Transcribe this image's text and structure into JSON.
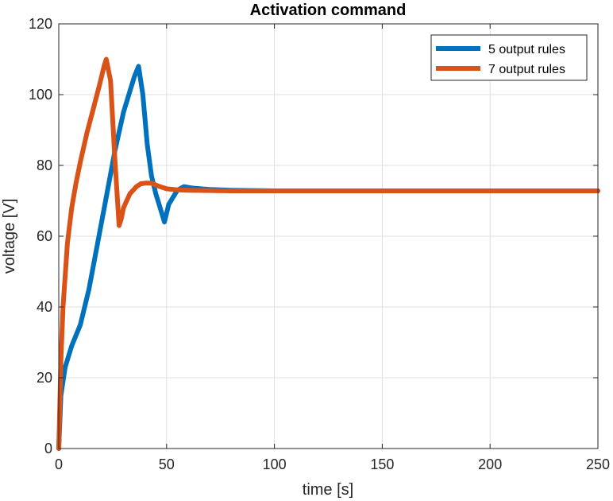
{
  "chart_data": {
    "type": "line",
    "title": "Activation command",
    "xlabel": "time [s]",
    "ylabel": "voltage [V]",
    "xlim": [
      0,
      250
    ],
    "ylim": [
      0,
      120
    ],
    "xticks": [
      0,
      50,
      100,
      150,
      200,
      250
    ],
    "yticks": [
      0,
      20,
      40,
      60,
      80,
      100,
      120
    ],
    "grid": true,
    "legend_position": "top-right",
    "series": [
      {
        "name": "5 output rules",
        "color": "#0072BD",
        "x": [
          0,
          1,
          3,
          6,
          10,
          14,
          18,
          22,
          26,
          30,
          33,
          35,
          37,
          39,
          41,
          43,
          45,
          47,
          49,
          51,
          53,
          55,
          58,
          62,
          70,
          80,
          90,
          100,
          120,
          150,
          200,
          250
        ],
        "y": [
          0,
          15,
          23,
          29,
          35,
          45,
          58,
          71,
          84,
          95,
          101,
          105,
          108,
          100,
          86,
          77,
          72,
          68,
          64,
          69,
          71,
          73,
          74,
          73.6,
          73.2,
          73,
          72.9,
          72.8,
          72.8,
          72.8,
          72.8,
          72.8
        ]
      },
      {
        "name": "7 output rules",
        "color": "#D95319",
        "x": [
          0,
          1,
          2,
          4,
          6,
          8,
          10,
          13,
          16,
          19,
          21,
          22,
          24,
          26,
          28,
          29,
          30,
          33,
          36,
          38,
          40,
          43,
          46,
          50,
          55,
          60,
          70,
          80,
          100,
          150,
          200,
          250
        ],
        "y": [
          0,
          25,
          40,
          58,
          68,
          75,
          81,
          89,
          96,
          103,
          108,
          110,
          104,
          82,
          63,
          65,
          68,
          72,
          74,
          74.8,
          75,
          75,
          74.2,
          73.4,
          73.1,
          73,
          72.9,
          72.8,
          72.8,
          72.8,
          72.8,
          72.8
        ]
      }
    ]
  }
}
